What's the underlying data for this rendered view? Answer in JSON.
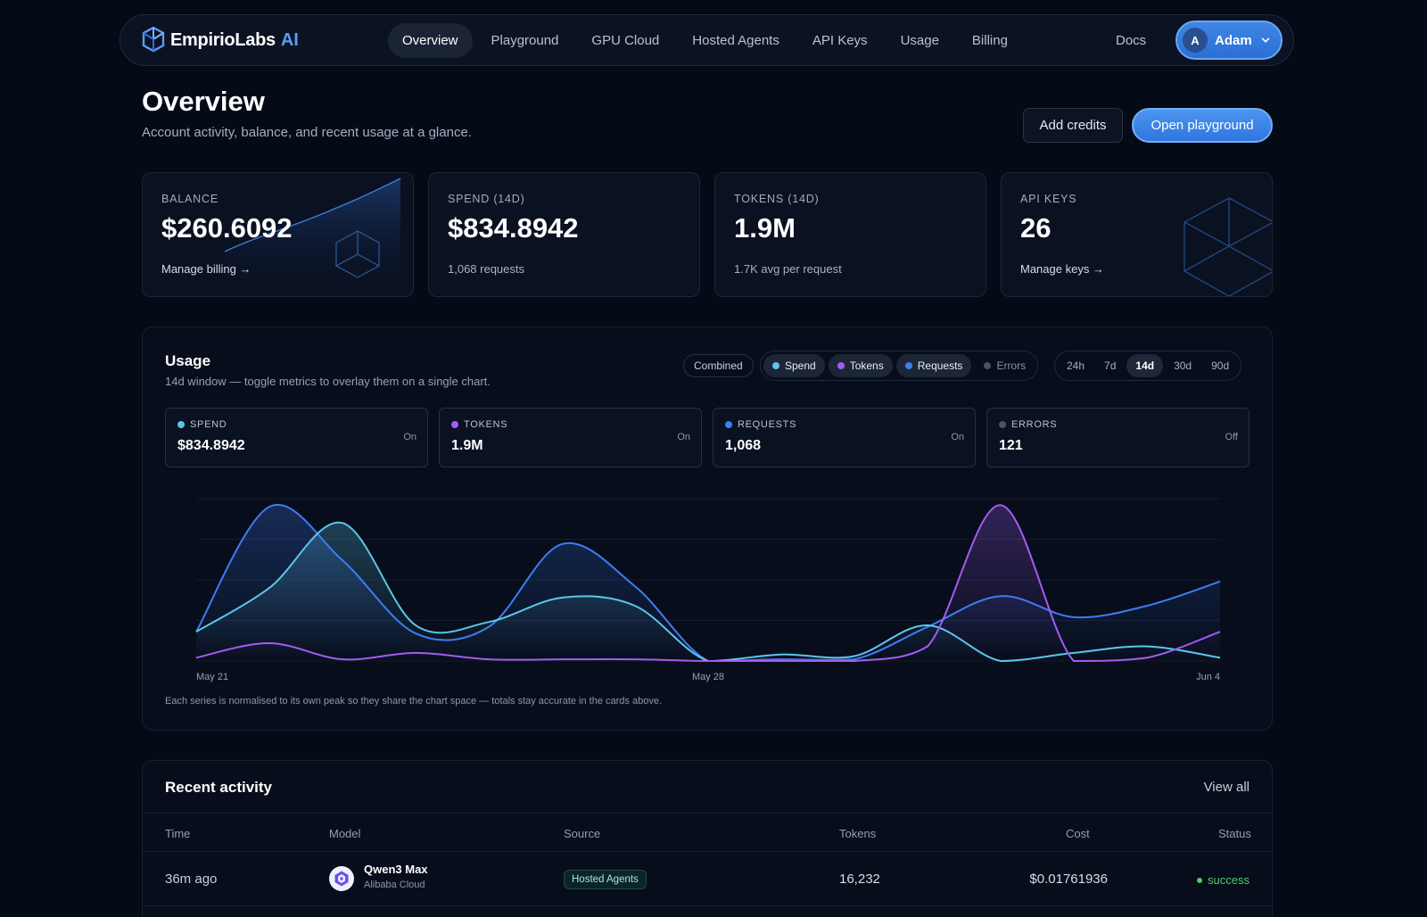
{
  "brand": {
    "name": "EmpirioLabs",
    "suffix": "AI"
  },
  "nav": {
    "items": [
      {
        "label": "Overview",
        "active": true
      },
      {
        "label": "Playground"
      },
      {
        "label": "GPU Cloud"
      },
      {
        "label": "Hosted Agents"
      },
      {
        "label": "API Keys"
      },
      {
        "label": "Usage"
      },
      {
        "label": "Billing"
      }
    ],
    "docs": "Docs",
    "user": {
      "initial": "A",
      "name": "Adam"
    }
  },
  "header": {
    "title": "Overview",
    "subtitle": "Account activity, balance, and recent usage at a glance.",
    "add_credits": "Add credits",
    "open_playground": "Open playground"
  },
  "stats": [
    {
      "label": "BALANCE",
      "value": "$260.6092",
      "foot": "Manage billing →"
    },
    {
      "label": "SPEND (14D)",
      "value": "$834.8942",
      "foot": "1,068 requests"
    },
    {
      "label": "TOKENS (14D)",
      "value": "1.9M",
      "foot": "1.7K avg per request"
    },
    {
      "label": "API KEYS",
      "value": "26",
      "foot": "Manage keys →"
    }
  ],
  "usage": {
    "title": "Usage",
    "subtitle": "14d window — toggle metrics to overlay them on a single chart.",
    "combined": "Combined",
    "metrics": [
      {
        "label": "Spend",
        "color": "#5cc6e8",
        "on": true
      },
      {
        "label": "Tokens",
        "color": "#a35cf2",
        "on": true
      },
      {
        "label": "Requests",
        "color": "#3f7cf2",
        "on": true
      },
      {
        "label": "Errors",
        "color": "#4a5263",
        "on": false
      }
    ],
    "ranges": [
      "24h",
      "7d",
      "14d",
      "30d",
      "90d"
    ],
    "active_range": "14d",
    "cards": [
      {
        "label": "SPEND",
        "value": "$834.8942",
        "state": "On",
        "color": "#5cc6e8"
      },
      {
        "label": "TOKENS",
        "value": "1.9M",
        "state": "On",
        "color": "#a35cf2"
      },
      {
        "label": "REQUESTS",
        "value": "1,068",
        "state": "On",
        "color": "#3f7cf2"
      },
      {
        "label": "ERRORS",
        "value": "121",
        "state": "Off",
        "color": "#4a5263"
      }
    ],
    "note": "Each series is normalised to its own peak so they share the chart space — totals stay accurate in the cards above."
  },
  "chart_data": {
    "type": "area",
    "x": [
      "May 21",
      "May 22",
      "May 23",
      "May 24",
      "May 25",
      "May 26",
      "May 27",
      "May 28",
      "May 29",
      "May 30",
      "May 31",
      "Jun 1",
      "Jun 2",
      "Jun 3",
      "Jun 4"
    ],
    "x_tick_labels": [
      "May 21",
      "May 28",
      "Jun 4"
    ],
    "ylim": [
      0,
      1
    ],
    "grid": true,
    "series": [
      {
        "name": "Requests",
        "color": "#3f7cf2",
        "values": [
          0.18,
          0.95,
          0.62,
          0.17,
          0.21,
          0.72,
          0.46,
          0.0,
          0.01,
          0.01,
          0.21,
          0.4,
          0.27,
          0.34,
          0.49
        ]
      },
      {
        "name": "Spend",
        "color": "#5cc6e8",
        "values": [
          0.18,
          0.45,
          0.85,
          0.22,
          0.24,
          0.39,
          0.34,
          0.0,
          0.04,
          0.03,
          0.22,
          0.0,
          0.05,
          0.09,
          0.02
        ]
      },
      {
        "name": "Tokens",
        "color": "#a35cf2",
        "values": [
          0.02,
          0.11,
          0.01,
          0.05,
          0.01,
          0.01,
          0.01,
          0.0,
          0.0,
          0.0,
          0.09,
          0.96,
          0.0,
          0.02,
          0.18
        ]
      }
    ]
  },
  "recent": {
    "title": "Recent activity",
    "view_all": "View all",
    "columns": [
      "Time",
      "Model",
      "Source",
      "Tokens",
      "Cost",
      "Status"
    ],
    "rows": [
      {
        "time": "36m ago",
        "model": "Qwen3 Max",
        "provider": "Alibaba Cloud",
        "source": "Hosted Agents",
        "tokens": "16,232",
        "cost": "$0.01761936",
        "status": "success"
      }
    ]
  }
}
